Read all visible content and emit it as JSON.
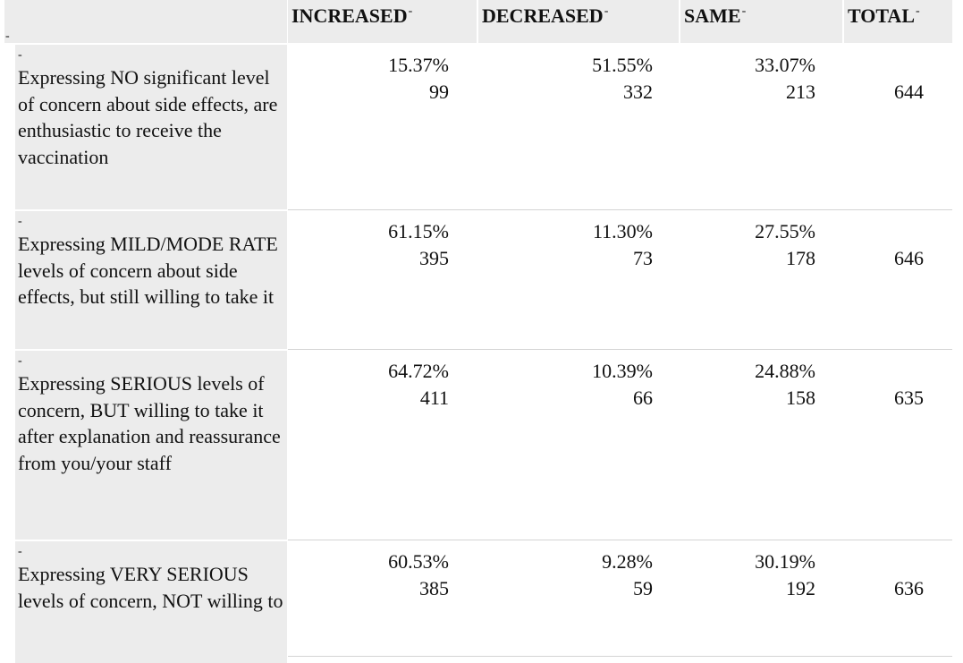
{
  "header": {
    "corner_marker": "-",
    "columns": [
      {
        "label": "INCREASED",
        "marker": "-"
      },
      {
        "label": "DECREASED",
        "marker": "-"
      },
      {
        "label": "SAME",
        "marker": "-"
      },
      {
        "label": "TOTAL",
        "marker": "-"
      }
    ]
  },
  "rows": [
    {
      "marker": "-",
      "label": "Expressing NO significant level of concern about side effects, are enthusiastic to receive the vaccination",
      "increased": {
        "pct": "15.37%",
        "count": "99"
      },
      "decreased": {
        "pct": "51.55%",
        "count": "332"
      },
      "same": {
        "pct": "33.07%",
        "count": "213"
      },
      "total": "644"
    },
    {
      "marker": "-",
      "label": "Expressing MILD/MODE RATE levels of concern about side effects, but still willing to take it",
      "increased": {
        "pct": "61.15%",
        "count": "395"
      },
      "decreased": {
        "pct": "11.30%",
        "count": "73"
      },
      "same": {
        "pct": "27.55%",
        "count": "178"
      },
      "total": "646"
    },
    {
      "marker": "-",
      "label": "Expressing SERIOUS levels of concern, BUT willing to take it after explanation and reassurance from you/your staff",
      "increased": {
        "pct": "64.72%",
        "count": "411"
      },
      "decreased": {
        "pct": "10.39%",
        "count": "66"
      },
      "same": {
        "pct": "24.88%",
        "count": "158"
      },
      "total": "635"
    },
    {
      "marker": "-",
      "label": "Expressing VERY SERIOUS levels of concern, NOT willing to",
      "increased": {
        "pct": "60.53%",
        "count": "385"
      },
      "decreased": {
        "pct": "9.28%",
        "count": "59"
      },
      "same": {
        "pct": "30.19%",
        "count": "192"
      },
      "total": "636"
    }
  ]
}
